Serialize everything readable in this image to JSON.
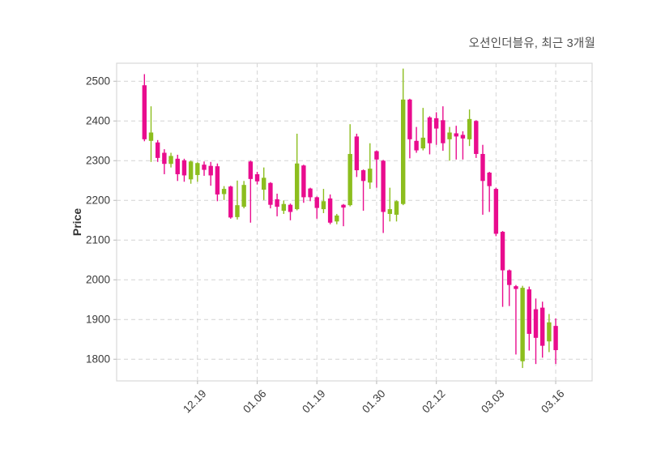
{
  "title": "오션인더블유, 최근 3개월",
  "y_axis": {
    "label": "Price",
    "ticks": [
      2500,
      2400,
      2300,
      2200,
      2100,
      2000,
      1900,
      1800
    ]
  },
  "x_axis": {
    "tick_labels": [
      "12.19",
      "01.06",
      "01.19",
      "01.30",
      "02.12",
      "03.03",
      "03.16"
    ],
    "tick_indices": [
      8,
      17,
      26,
      35,
      44,
      53,
      62
    ]
  },
  "colors": {
    "up": "#8cbe1e",
    "down": "#e90c8e",
    "grid": "#d4d4d4",
    "frame": "#d8d8d8",
    "tick_mark": "#c4c4c4",
    "tick_text": "#3a3a3a",
    "title_text": "#4e4e4e",
    "background": "#ffffff"
  },
  "chart_data": {
    "type": "candlestick",
    "title": "오션인더블유, 최근 3개월",
    "xlabel": "",
    "ylabel": "Price",
    "y_ticks": [
      2500,
      2400,
      2300,
      2200,
      2100,
      2000,
      1900,
      1800
    ],
    "y_range": [
      1745,
      2546
    ],
    "grid": "dashed",
    "legend": "none",
    "x_tick_labels": [
      "12.19",
      "01.06",
      "01.19",
      "01.30",
      "02.12",
      "03.03",
      "03.16"
    ],
    "x_tick_indices": [
      8,
      17,
      26,
      35,
      44,
      53,
      62
    ],
    "up_color": "#8cbe1e",
    "down_color": "#e90c8e",
    "candles_ohlc": [
      [
        2490,
        2518,
        2349,
        2354
      ],
      [
        2350,
        2437,
        2297,
        2371
      ],
      [
        2346,
        2352,
        2297,
        2307
      ],
      [
        2320,
        2329,
        2266,
        2292
      ],
      [
        2292,
        2320,
        2283,
        2312
      ],
      [
        2305,
        2315,
        2249,
        2266
      ],
      [
        2301,
        2305,
        2247,
        2263
      ],
      [
        2253,
        2300,
        2242,
        2298
      ],
      [
        2264,
        2296,
        2247,
        2294
      ],
      [
        2290,
        2298,
        2262,
        2277
      ],
      [
        2287,
        2297,
        2237,
        2263
      ],
      [
        2286,
        2293,
        2198,
        2215
      ],
      [
        2216,
        2236,
        2201,
        2229
      ],
      [
        2235,
        2237,
        2154,
        2157
      ],
      [
        2158,
        2250,
        2152,
        2188
      ],
      [
        2184,
        2249,
        2180,
        2239
      ],
      [
        2298,
        2300,
        2144,
        2254
      ],
      [
        2266,
        2272,
        2240,
        2248
      ],
      [
        2227,
        2283,
        2201,
        2257
      ],
      [
        2244,
        2246,
        2180,
        2189
      ],
      [
        2203,
        2217,
        2160,
        2184
      ],
      [
        2174,
        2200,
        2166,
        2191
      ],
      [
        2189,
        2192,
        2150,
        2171
      ],
      [
        2178,
        2368,
        2175,
        2293
      ],
      [
        2288,
        2290,
        2194,
        2208
      ],
      [
        2230,
        2232,
        2198,
        2208
      ],
      [
        2208,
        2210,
        2154,
        2181
      ],
      [
        2178,
        2229,
        2168,
        2198
      ],
      [
        2205,
        2215,
        2140,
        2144
      ],
      [
        2147,
        2166,
        2140,
        2162
      ],
      [
        2189,
        2191,
        2135,
        2182
      ],
      [
        2188,
        2392,
        2185,
        2317
      ],
      [
        2361,
        2368,
        2259,
        2276
      ],
      [
        2276,
        2278,
        2174,
        2249
      ],
      [
        2245,
        2344,
        2229,
        2280
      ],
      [
        2324,
        2326,
        2232,
        2303
      ],
      [
        2300,
        2302,
        2118,
        2171
      ],
      [
        2166,
        2232,
        2147,
        2178
      ],
      [
        2164,
        2200,
        2147,
        2198
      ],
      [
        2191,
        2532,
        2188,
        2454
      ],
      [
        2454,
        2456,
        2306,
        2354
      ],
      [
        2350,
        2385,
        2320,
        2326
      ],
      [
        2331,
        2433,
        2326,
        2358
      ],
      [
        2409,
        2412,
        2316,
        2344
      ],
      [
        2407,
        2422,
        2340,
        2381
      ],
      [
        2402,
        2437,
        2325,
        2344
      ],
      [
        2354,
        2385,
        2300,
        2371
      ],
      [
        2369,
        2388,
        2303,
        2361
      ],
      [
        2365,
        2374,
        2303,
        2356
      ],
      [
        2354,
        2429,
        2337,
        2405
      ],
      [
        2400,
        2402,
        2307,
        2317
      ],
      [
        2317,
        2340,
        2164,
        2249
      ],
      [
        2270,
        2272,
        2171,
        2236
      ],
      [
        2229,
        2232,
        2110,
        2116
      ],
      [
        2121,
        2123,
        1932,
        2024
      ],
      [
        2024,
        2026,
        1934,
        1987
      ],
      [
        1984,
        1987,
        1812,
        1977
      ],
      [
        1795,
        1985,
        1778,
        1980
      ],
      [
        1976,
        1983,
        1822,
        1864
      ],
      [
        1926,
        1953,
        1788,
        1854
      ],
      [
        1930,
        1945,
        1804,
        1834
      ],
      [
        1845,
        1914,
        1818,
        1893
      ],
      [
        1884,
        1903,
        1788,
        1823
      ]
    ]
  }
}
